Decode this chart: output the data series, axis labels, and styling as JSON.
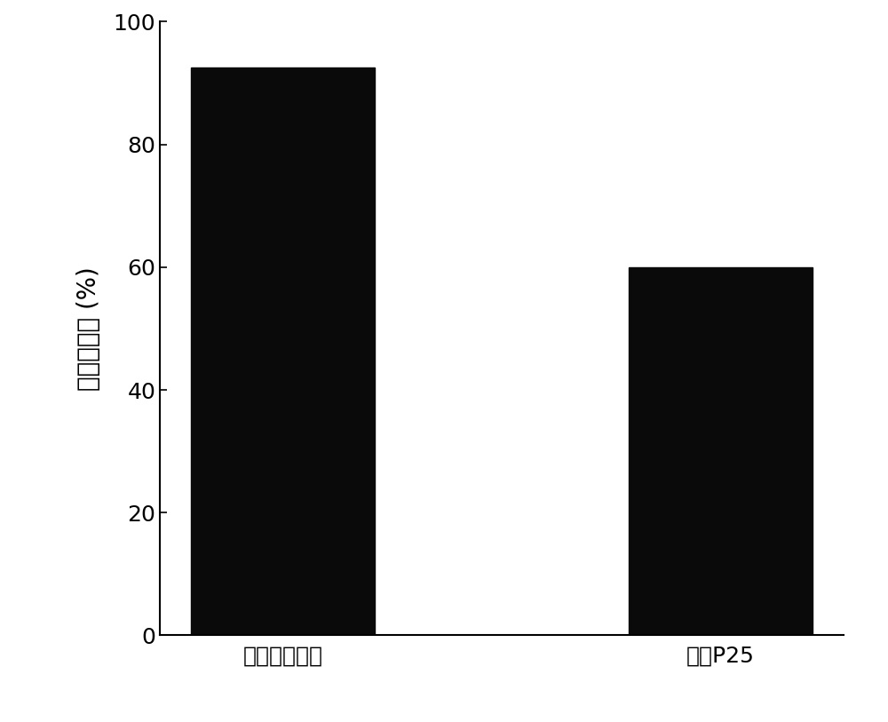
{
  "categories": [
    "复合二氧化酦",
    "商用P25"
  ],
  "values": [
    92.5,
    60.0
  ],
  "bar_color": "#0a0a0a",
  "bar_width": 0.42,
  "ylabel": "甲苯矿化率 (%)",
  "ylim": [
    0,
    100
  ],
  "yticks": [
    0,
    20,
    40,
    60,
    80,
    100
  ],
  "background_color": "#ffffff",
  "ylabel_fontsize": 20,
  "tick_fontsize": 18,
  "xlabel_fontsize": 18,
  "spine_linewidth": 1.5,
  "figure_width": 10.0,
  "figure_height": 8.13,
  "dpi": 100
}
